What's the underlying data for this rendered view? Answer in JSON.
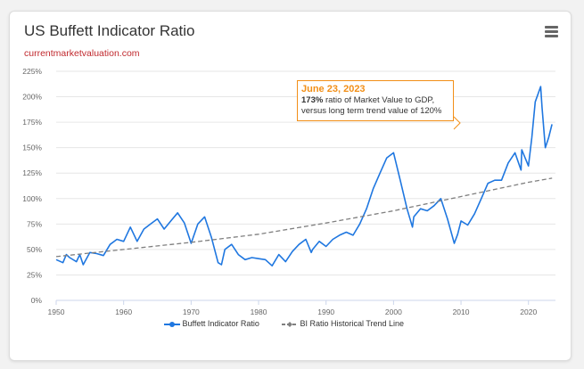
{
  "header": {
    "title": "US Buffett Indicator Ratio",
    "subtitle": "currentmarketvaluation.com",
    "menu_icon": "hamburger-menu-icon"
  },
  "colors": {
    "series": "#1f77e0",
    "trend": "#7f7f7f",
    "annotation_border": "#f28f17",
    "annotation_date": "#f28f17",
    "subtitle": "#c0282d"
  },
  "annotation": {
    "date": "June 23, 2023",
    "value": "173%",
    "line1_rest": " ratio of Market Value to GDP,",
    "line2": "versus long term trend value of 120%"
  },
  "legend": {
    "series": "Buffett Indicator Ratio",
    "trend": "BI Ratio Historical Trend Line"
  },
  "chart_data": {
    "type": "line",
    "title": "US Buffett Indicator Ratio",
    "subtitle": "currentmarketvaluation.com",
    "xlim": [
      1950,
      2024
    ],
    "ylim": [
      0,
      225
    ],
    "x_ticks": [
      1950,
      1960,
      1970,
      1980,
      1990,
      2000,
      2010,
      2020
    ],
    "y_ticks": [
      0,
      25,
      50,
      75,
      100,
      125,
      150,
      175,
      200,
      225
    ],
    "y_tick_labels": [
      "0%",
      "25%",
      "50%",
      "75%",
      "100%",
      "125%",
      "150%",
      "175%",
      "200%",
      "225%"
    ],
    "grid": "horizontal",
    "legend_position": "bottom",
    "series": [
      {
        "name": "Buffett Indicator Ratio",
        "style": "solid",
        "points": [
          [
            1950,
            40
          ],
          [
            1951,
            37
          ],
          [
            1951.5,
            45
          ],
          [
            1952,
            42
          ],
          [
            1953,
            38
          ],
          [
            1953.5,
            45
          ],
          [
            1954,
            35
          ],
          [
            1955,
            47
          ],
          [
            1956,
            46
          ],
          [
            1957,
            44
          ],
          [
            1958,
            55
          ],
          [
            1959,
            60
          ],
          [
            1960,
            58
          ],
          [
            1961,
            72
          ],
          [
            1962,
            58
          ],
          [
            1963,
            70
          ],
          [
            1964,
            75
          ],
          [
            1965,
            80
          ],
          [
            1966,
            70
          ],
          [
            1967,
            78
          ],
          [
            1968,
            86
          ],
          [
            1969,
            76
          ],
          [
            1970,
            56
          ],
          [
            1971,
            75
          ],
          [
            1972,
            82
          ],
          [
            1973,
            62
          ],
          [
            1974,
            37
          ],
          [
            1974.5,
            35
          ],
          [
            1975,
            50
          ],
          [
            1976,
            55
          ],
          [
            1977,
            45
          ],
          [
            1978,
            40
          ],
          [
            1979,
            42
          ],
          [
            1980,
            41
          ],
          [
            1981,
            40
          ],
          [
            1982,
            34
          ],
          [
            1983,
            45
          ],
          [
            1984,
            38
          ],
          [
            1985,
            48
          ],
          [
            1986,
            55
          ],
          [
            1987,
            60
          ],
          [
            1987.8,
            47
          ],
          [
            1988,
            50
          ],
          [
            1989,
            58
          ],
          [
            1990,
            53
          ],
          [
            1991,
            60
          ],
          [
            1992,
            64
          ],
          [
            1993,
            67
          ],
          [
            1994,
            64
          ],
          [
            1995,
            75
          ],
          [
            1996,
            90
          ],
          [
            1997,
            110
          ],
          [
            1998,
            125
          ],
          [
            1999,
            140
          ],
          [
            2000,
            145
          ],
          [
            2001,
            118
          ],
          [
            2002,
            90
          ],
          [
            2002.8,
            72
          ],
          [
            2003,
            82
          ],
          [
            2004,
            90
          ],
          [
            2005,
            88
          ],
          [
            2006,
            93
          ],
          [
            2007,
            100
          ],
          [
            2008,
            80
          ],
          [
            2009,
            56
          ],
          [
            2009.5,
            65
          ],
          [
            2010,
            78
          ],
          [
            2011,
            74
          ],
          [
            2012,
            85
          ],
          [
            2013,
            100
          ],
          [
            2014,
            115
          ],
          [
            2015,
            118
          ],
          [
            2016,
            118
          ],
          [
            2017,
            135
          ],
          [
            2018,
            145
          ],
          [
            2018.9,
            128
          ],
          [
            2019,
            148
          ],
          [
            2020,
            132
          ],
          [
            2020.5,
            160
          ],
          [
            2021,
            195
          ],
          [
            2021.8,
            210
          ],
          [
            2022,
            190
          ],
          [
            2022.5,
            150
          ],
          [
            2023,
            160
          ],
          [
            2023.48,
            173
          ]
        ]
      },
      {
        "name": "BI Ratio Historical Trend Line",
        "style": "dashed",
        "points": [
          [
            1950,
            43
          ],
          [
            1960,
            50
          ],
          [
            1970,
            57
          ],
          [
            1980,
            65
          ],
          [
            1990,
            76
          ],
          [
            2000,
            88
          ],
          [
            2010,
            102
          ],
          [
            2020,
            116
          ],
          [
            2023.5,
            120
          ]
        ]
      }
    ]
  }
}
